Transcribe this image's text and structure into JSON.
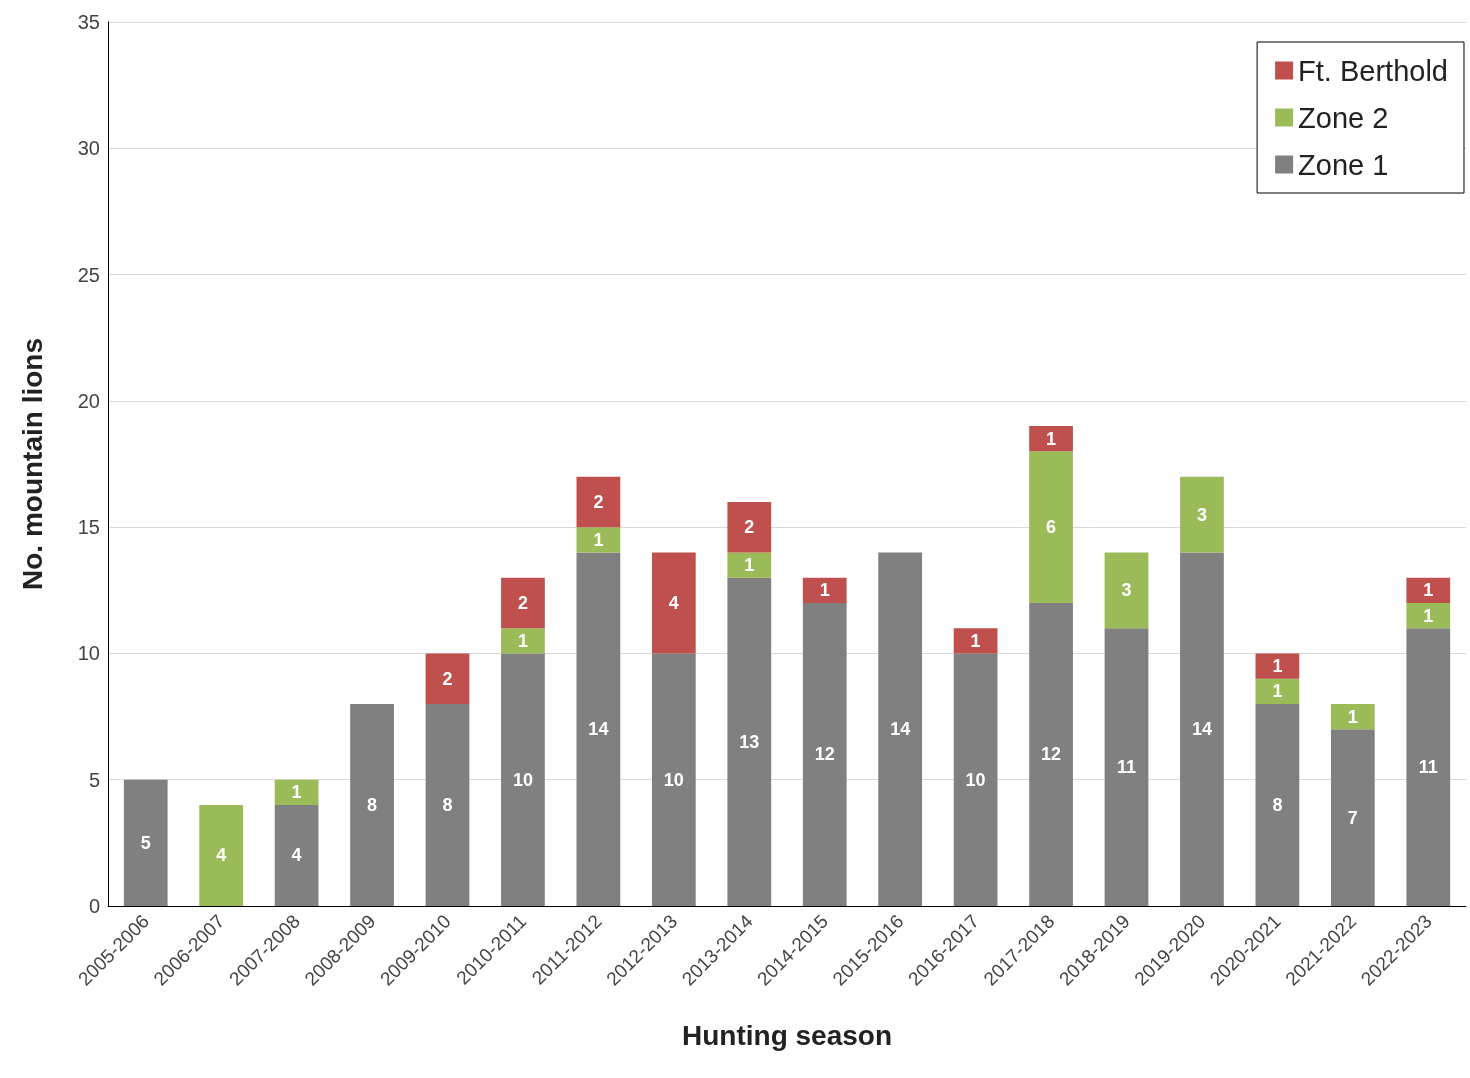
{
  "chart_data": {
    "type": "bar",
    "stacked": true,
    "xlabel": "Hunting season",
    "ylabel": "No. mountain lions",
    "categories": [
      "2005-2006",
      "2006-2007",
      "2007-2008",
      "2008-2009",
      "2009-2010",
      "2010-2011",
      "2011-2012",
      "2012-2013",
      "2013-2014",
      "2014-2015",
      "2015-2016",
      "2016-2017",
      "2017-2018",
      "2018-2019",
      "2019-2020",
      "2020-2021",
      "2021-2022",
      "2022-2023"
    ],
    "series": [
      {
        "name": "Zone 1",
        "color": "#808080",
        "values": [
          5,
          null,
          4,
          8,
          8,
          10,
          14,
          10,
          13,
          12,
          14,
          10,
          12,
          11,
          14,
          8,
          7,
          11
        ]
      },
      {
        "name": "Zone 2",
        "color": "#9bbb59",
        "values": [
          null,
          4,
          1,
          null,
          null,
          1,
          1,
          null,
          1,
          null,
          null,
          null,
          6,
          3,
          3,
          1,
          1,
          1
        ]
      },
      {
        "name": "Ft. Berthold",
        "color": "#c0504d",
        "values": [
          null,
          null,
          null,
          null,
          2,
          2,
          2,
          4,
          2,
          1,
          null,
          1,
          1,
          null,
          null,
          1,
          null,
          1
        ]
      }
    ],
    "ylim": [
      0,
      35
    ],
    "yticks": [
      0,
      5,
      10,
      15,
      20,
      25,
      30,
      35
    ],
    "grid": "y",
    "legend": "top right",
    "data_labels": true
  }
}
